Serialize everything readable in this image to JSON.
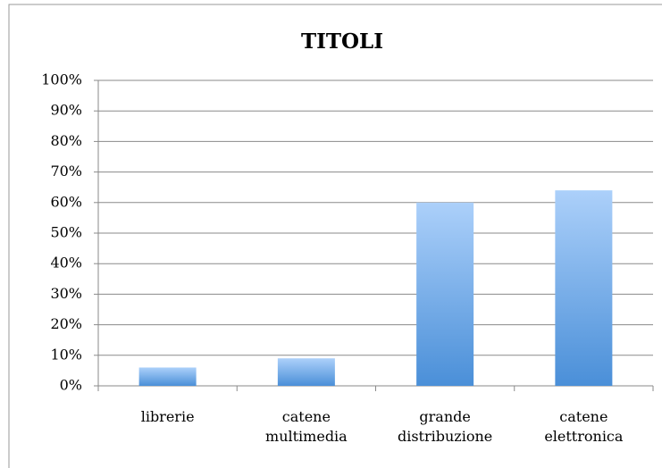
{
  "chart_data": {
    "type": "bar",
    "title": "TITOLI",
    "categories": [
      "librerie",
      "catene multimedia",
      "grande distribuzione",
      "catene elettronica"
    ],
    "values": [
      6,
      9,
      60,
      64
    ],
    "color": "#6fa8e8",
    "ylim": [
      0,
      100
    ],
    "yticks": [
      {
        "value": 0,
        "label": "0%"
      },
      {
        "value": 10,
        "label": "10%"
      },
      {
        "value": 20,
        "label": "20%"
      },
      {
        "value": 30,
        "label": "30%"
      },
      {
        "value": 40,
        "label": "40%"
      },
      {
        "value": 50,
        "label": "50%"
      },
      {
        "value": 60,
        "label": "60%"
      },
      {
        "value": 70,
        "label": "70%"
      },
      {
        "value": 80,
        "label": "80%"
      },
      {
        "value": 90,
        "label": "90%"
      },
      {
        "value": 100,
        "label": "100%"
      }
    ],
    "grid": true
  }
}
